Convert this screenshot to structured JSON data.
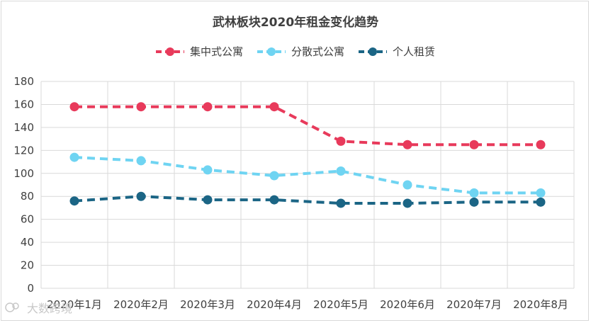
{
  "chart_data": {
    "type": "line",
    "title": "武林板块2020年租金变化趋势",
    "categories": [
      "2020年1月",
      "2020年2月",
      "2020年3月",
      "2020年4月",
      "2020年5月",
      "2020年6月",
      "2020年7月",
      "2020年8月"
    ],
    "ylim": [
      0,
      180
    ],
    "yticks": [
      0,
      20,
      40,
      60,
      80,
      100,
      120,
      140,
      160,
      180
    ],
    "grid": true,
    "legend_position": "top-center",
    "series": [
      {
        "name": "集中式公寓",
        "color": "#e83a5b",
        "values": [
          158,
          158,
          158,
          158,
          128,
          125,
          125,
          125
        ]
      },
      {
        "name": "分散式公寓",
        "color": "#6fd4f2",
        "values": [
          114,
          111,
          103,
          98,
          102,
          90,
          83,
          83
        ]
      },
      {
        "name": "个人租赁",
        "color": "#1b6585",
        "values": [
          76,
          80,
          77,
          77,
          74,
          74,
          75,
          75
        ]
      }
    ]
  },
  "watermark": {
    "text": "大数跨境"
  }
}
